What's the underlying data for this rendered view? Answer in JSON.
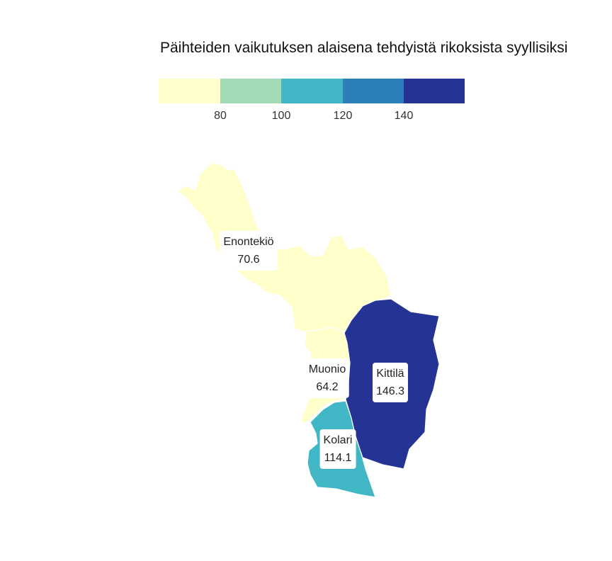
{
  "title": "Päihteiden vaikutuksen alaisena tehdyistä rikoksista syyllisiksi",
  "legend": {
    "colors": [
      "#ffffcc",
      "#a1dab4",
      "#41b6c4",
      "#2c7fb8",
      "#253494"
    ],
    "ticks": [
      "80",
      "100",
      "120",
      "140"
    ]
  },
  "regions": [
    {
      "name": "Enontekiö",
      "value": "70.6",
      "color": "#ffffcc"
    },
    {
      "name": "Muonio",
      "value": "64.2",
      "color": "#ffffcc"
    },
    {
      "name": "Kittilä",
      "value": "146.3",
      "color": "#253494"
    },
    {
      "name": "Kolari",
      "value": "114.1",
      "color": "#41b6c4"
    }
  ]
}
